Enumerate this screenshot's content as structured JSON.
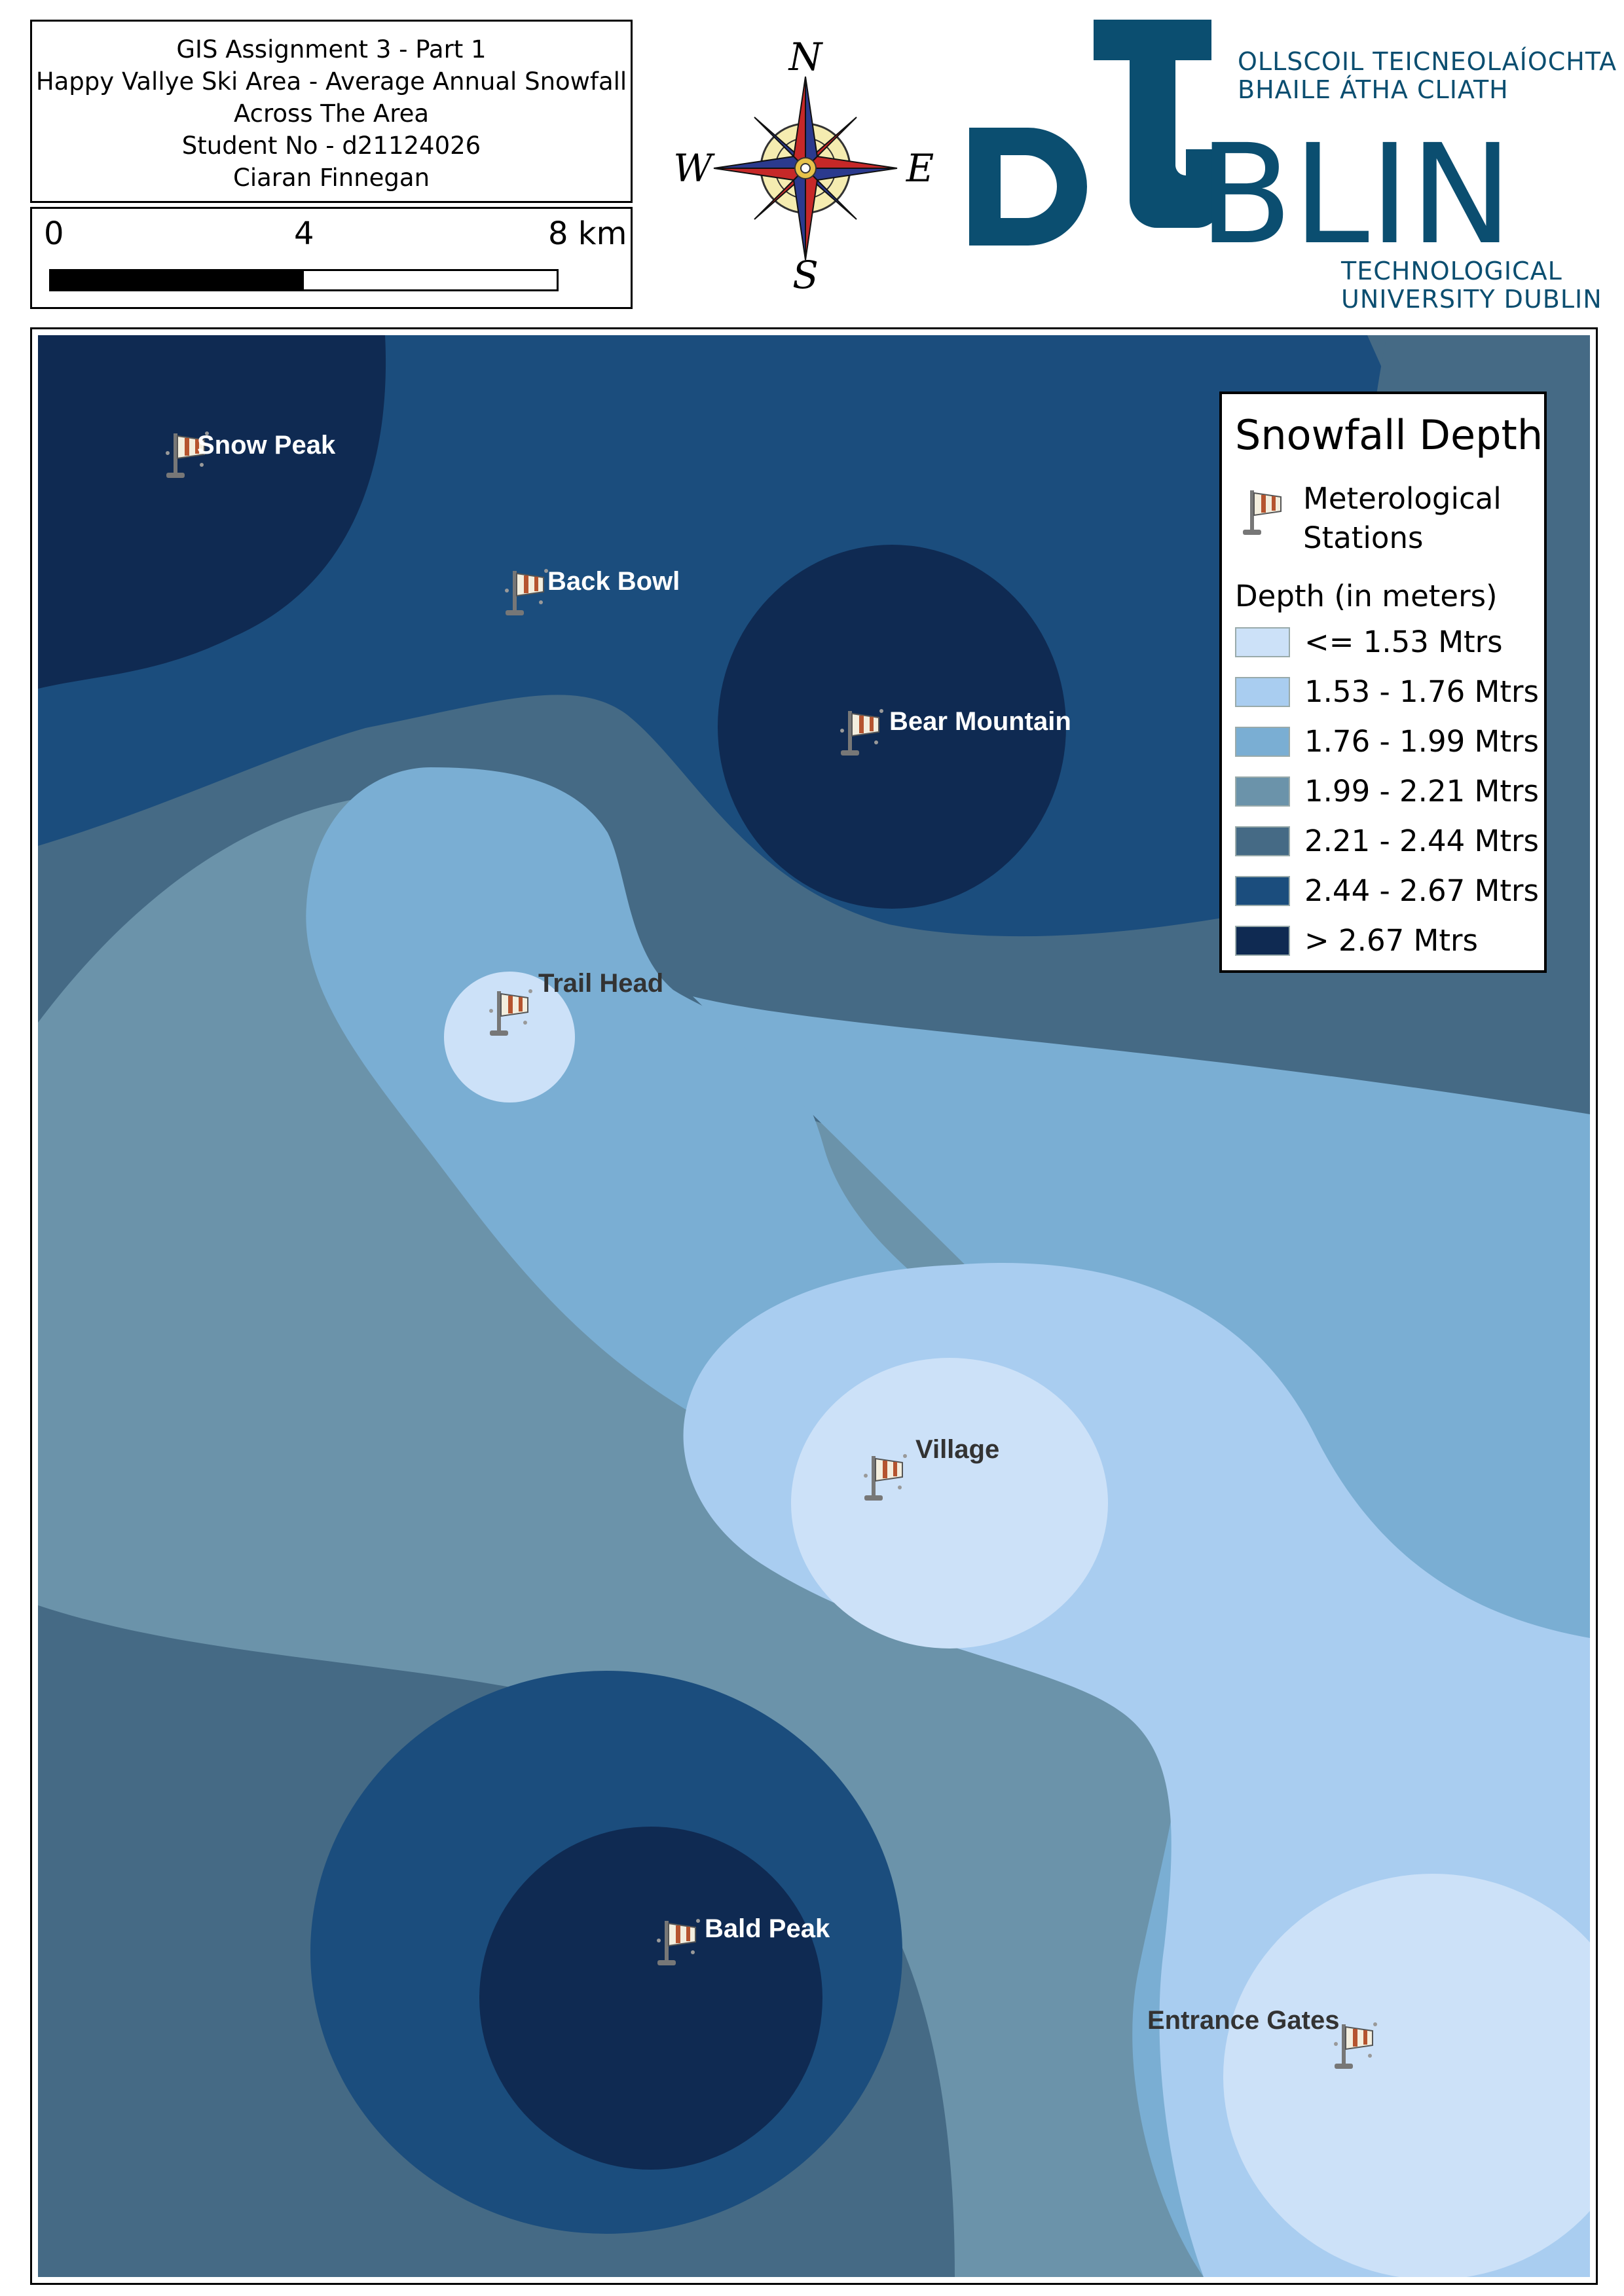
{
  "title_block": {
    "lines": [
      "GIS Assignment 3 - Part 1",
      "Happy Vallye Ski Area - Average Annual Snowfall",
      "Across The Area",
      "Student No - d21124026",
      "Ciaran Finnegan"
    ]
  },
  "scale_bar": {
    "labels": [
      "0",
      "4",
      "8 km"
    ]
  },
  "north_arrow": {
    "icon": "compass-rose-icon",
    "n": "N",
    "e": "E",
    "s": "S",
    "w": "W"
  },
  "logo": {
    "icon": "tu-dublin-logo",
    "irish_line1": "OLLSCOIL TEICNEOLAÍOCHTA",
    "irish_line2": "BHAILE ÁTHA CLIATH",
    "wordmark": "DUBLIN",
    "english_line1": "TECHNOLOGICAL",
    "english_line2": "UNIVERSITY DUBLIN",
    "color": "#0b4e70"
  },
  "map": {
    "stations": [
      {
        "name": "Snow Peak"
      },
      {
        "name": "Back Bowl"
      },
      {
        "name": "Bear Mountain"
      },
      {
        "name": "Trail Head"
      },
      {
        "name": "Village"
      },
      {
        "name": "Bald Peak"
      },
      {
        "name": "Entrance Gates"
      }
    ],
    "station_icon": "weather-station-windsock-icon"
  },
  "legend": {
    "title": "Snowfall Depth",
    "station_label": "Meterological Stations",
    "station_label_line1": "Meterological",
    "station_label_line2": "Stations",
    "subtitle": "Depth (in meters)",
    "classes": [
      {
        "label": "<= 1.53 Mtrs",
        "color": "#cce1f8"
      },
      {
        "label": "1.53 - 1.76 Mtrs",
        "color": "#a9cdf0"
      },
      {
        "label": "1.76 - 1.99 Mtrs",
        "color": "#7aaed3"
      },
      {
        "label": "1.99 - 2.21 Mtrs",
        "color": "#6b93aa"
      },
      {
        "label": "2.21 - 2.44 Mtrs",
        "color": "#456a85"
      },
      {
        "label": "2.44 - 2.67 Mtrs",
        "color": "#1b4d7d"
      },
      {
        "label": "> 2.67 Mtrs",
        "color": "#0f2a52"
      }
    ]
  }
}
